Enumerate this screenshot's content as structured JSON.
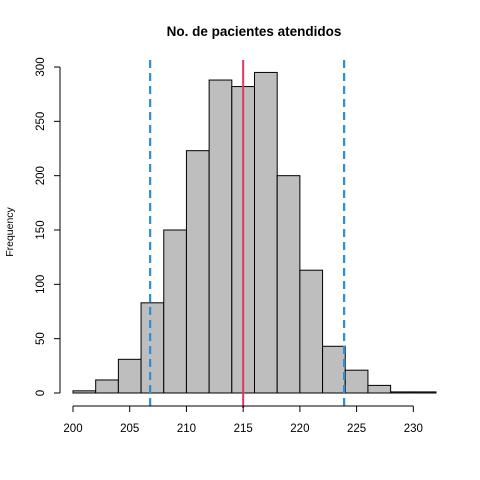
{
  "chart_data": {
    "type": "bar",
    "title": "No. de pacientes atendidos",
    "xlabel": "",
    "ylabel": "Frequency",
    "xlim": [
      200,
      232
    ],
    "ylim": [
      0,
      300
    ],
    "x_ticks": [
      200,
      205,
      210,
      215,
      220,
      225,
      230
    ],
    "y_ticks": [
      0,
      50,
      100,
      150,
      200,
      250,
      300
    ],
    "bin_edges": [
      200,
      202,
      204,
      206,
      208,
      210,
      212,
      214,
      216,
      218,
      220,
      222,
      224,
      226,
      228,
      230,
      232
    ],
    "values": [
      2,
      12,
      31,
      83,
      150,
      223,
      288,
      282,
      295,
      200,
      113,
      43,
      21,
      7,
      1,
      1
    ],
    "bar_fill": "#bebebe",
    "bar_stroke": "#000000",
    "reference_lines": [
      {
        "x": 215.0,
        "style": "solid",
        "color": "#e0385e"
      },
      {
        "x": 206.8,
        "style": "dashed",
        "color": "#2b8fd9"
      },
      {
        "x": 223.9,
        "style": "dashed",
        "color": "#2b8fd9"
      }
    ],
    "grid": false,
    "legend": "none"
  }
}
